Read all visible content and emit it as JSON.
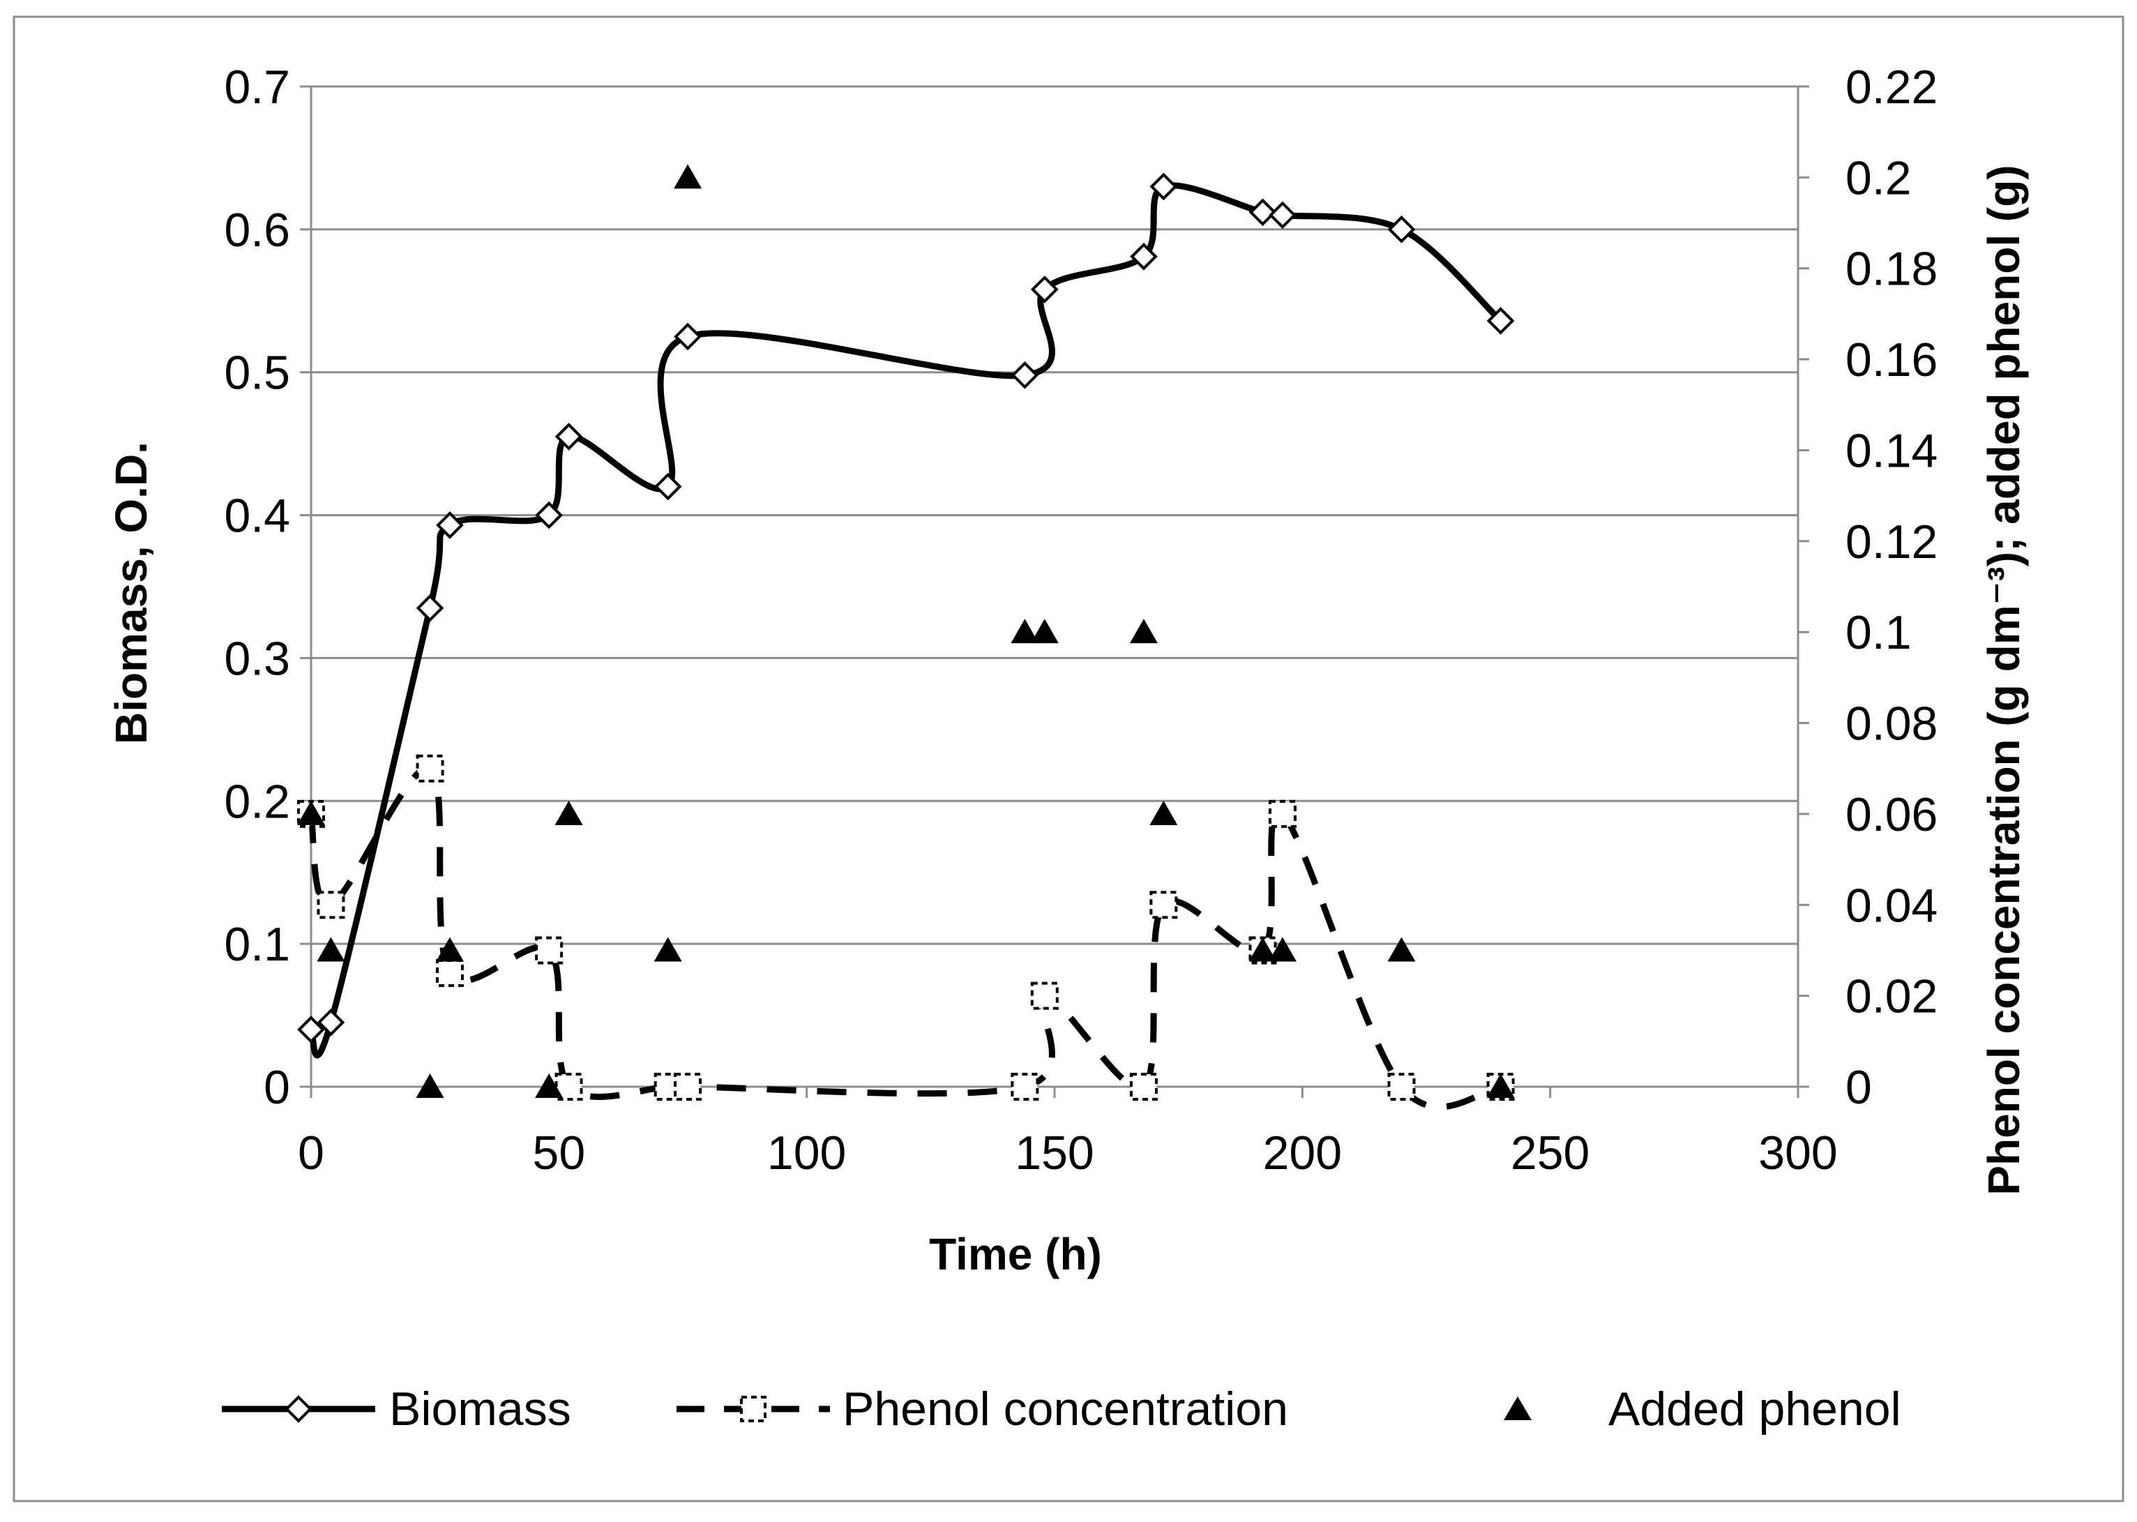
{
  "chart_data": {
    "type": "line",
    "title": "",
    "xlabel": "Time (h)",
    "ylabel": "Biomass, O.D.",
    "y2label": "Phenol concentration (g dm⁻³); added phenol (g)",
    "xlim": [
      0,
      300
    ],
    "ylim": [
      0,
      0.7
    ],
    "y2lim": [
      0,
      0.22
    ],
    "xticks": [
      0,
      50,
      100,
      150,
      200,
      250,
      300
    ],
    "xtick_labels": [
      "0",
      "50",
      "100",
      "150",
      "200",
      "250",
      "300"
    ],
    "yticks": [
      0,
      0.1,
      0.2,
      0.3,
      0.4,
      0.5,
      0.6,
      0.7
    ],
    "ytick_labels": [
      "0",
      "0.1",
      "0.2",
      "0.3",
      "0.4",
      "0.5",
      "0.6",
      "0.7"
    ],
    "y2ticks": [
      0,
      0.02,
      0.04,
      0.06,
      0.08,
      0.1,
      0.12,
      0.14,
      0.16,
      0.18,
      0.2,
      0.22
    ],
    "y2tick_labels": [
      "0",
      "0.02",
      "0.04",
      "0.06",
      "0.08",
      "0.1",
      "0.12",
      "0.14",
      "0.16",
      "0.18",
      "0.2",
      "0.22"
    ],
    "grid": true,
    "legend_position": "bottom",
    "series": [
      {
        "name": "Biomass",
        "axis": "left",
        "style": "solid-smooth",
        "marker": "open-diamond",
        "x": [
          0,
          4,
          24,
          28,
          48,
          52,
          72,
          76,
          144,
          148,
          168,
          172,
          192,
          196,
          220,
          240
        ],
        "y": [
          0.04,
          0.045,
          0.335,
          0.393,
          0.4,
          0.455,
          0.42,
          0.525,
          0.498,
          0.558,
          0.581,
          0.63,
          0.612,
          0.61,
          0.6,
          0.536
        ]
      },
      {
        "name": "Phenol concentration",
        "axis": "right",
        "style": "dashed-smooth",
        "marker": "open-dashed-square",
        "x": [
          0,
          4,
          24,
          28,
          48,
          52,
          72,
          76,
          144,
          148,
          168,
          172,
          192,
          196,
          220,
          240
        ],
        "y": [
          0.06,
          0.04,
          0.07,
          0.025,
          0.03,
          0.0,
          0.0,
          0.0,
          0.0,
          0.02,
          0.0,
          0.04,
          0.03,
          0.06,
          0.0,
          0.0
        ]
      },
      {
        "name": "Added phenol",
        "axis": "right",
        "style": "none",
        "marker": "filled-triangle",
        "x": [
          0,
          4,
          24,
          28,
          48,
          52,
          72,
          76,
          144,
          148,
          168,
          172,
          192,
          196,
          220,
          240
        ],
        "y": [
          0.06,
          0.03,
          0.0,
          0.03,
          0.0,
          0.06,
          0.03,
          0.2,
          0.1,
          0.1,
          0.1,
          0.06,
          0.03,
          0.03,
          0.03,
          0.0
        ]
      }
    ]
  }
}
